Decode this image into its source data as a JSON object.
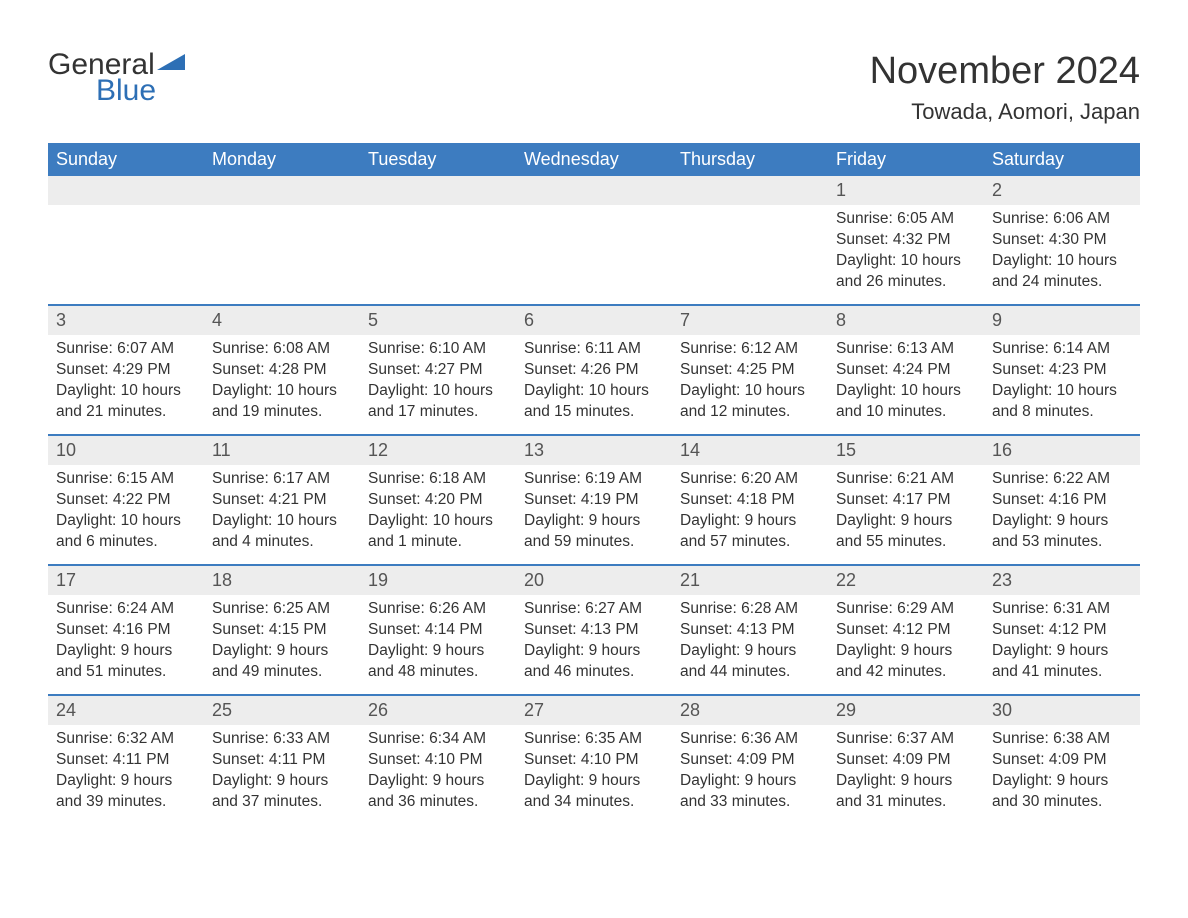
{
  "brand": {
    "word1": "General",
    "word2": "Blue",
    "accent": "#2d6fb5"
  },
  "title": "November 2024",
  "location": "Towada, Aomori, Japan",
  "colors": {
    "header_bg": "#3d7cc0",
    "header_text": "#ffffff",
    "daynum_bg": "#ededed",
    "row_border": "#3d7cc0",
    "text": "#333333",
    "background": "#ffffff"
  },
  "layout": {
    "columns": 7,
    "rows": 5
  },
  "weekdays": [
    "Sunday",
    "Monday",
    "Tuesday",
    "Wednesday",
    "Thursday",
    "Friday",
    "Saturday"
  ],
  "weeks": [
    [
      {
        "empty": true
      },
      {
        "empty": true
      },
      {
        "empty": true
      },
      {
        "empty": true
      },
      {
        "empty": true
      },
      {
        "day": "1",
        "sunrise": "Sunrise: 6:05 AM",
        "sunset": "Sunset: 4:32 PM",
        "daylight1": "Daylight: 10 hours",
        "daylight2": "and 26 minutes."
      },
      {
        "day": "2",
        "sunrise": "Sunrise: 6:06 AM",
        "sunset": "Sunset: 4:30 PM",
        "daylight1": "Daylight: 10 hours",
        "daylight2": "and 24 minutes."
      }
    ],
    [
      {
        "day": "3",
        "sunrise": "Sunrise: 6:07 AM",
        "sunset": "Sunset: 4:29 PM",
        "daylight1": "Daylight: 10 hours",
        "daylight2": "and 21 minutes."
      },
      {
        "day": "4",
        "sunrise": "Sunrise: 6:08 AM",
        "sunset": "Sunset: 4:28 PM",
        "daylight1": "Daylight: 10 hours",
        "daylight2": "and 19 minutes."
      },
      {
        "day": "5",
        "sunrise": "Sunrise: 6:10 AM",
        "sunset": "Sunset: 4:27 PM",
        "daylight1": "Daylight: 10 hours",
        "daylight2": "and 17 minutes."
      },
      {
        "day": "6",
        "sunrise": "Sunrise: 6:11 AM",
        "sunset": "Sunset: 4:26 PM",
        "daylight1": "Daylight: 10 hours",
        "daylight2": "and 15 minutes."
      },
      {
        "day": "7",
        "sunrise": "Sunrise: 6:12 AM",
        "sunset": "Sunset: 4:25 PM",
        "daylight1": "Daylight: 10 hours",
        "daylight2": "and 12 minutes."
      },
      {
        "day": "8",
        "sunrise": "Sunrise: 6:13 AM",
        "sunset": "Sunset: 4:24 PM",
        "daylight1": "Daylight: 10 hours",
        "daylight2": "and 10 minutes."
      },
      {
        "day": "9",
        "sunrise": "Sunrise: 6:14 AM",
        "sunset": "Sunset: 4:23 PM",
        "daylight1": "Daylight: 10 hours",
        "daylight2": "and 8 minutes."
      }
    ],
    [
      {
        "day": "10",
        "sunrise": "Sunrise: 6:15 AM",
        "sunset": "Sunset: 4:22 PM",
        "daylight1": "Daylight: 10 hours",
        "daylight2": "and 6 minutes."
      },
      {
        "day": "11",
        "sunrise": "Sunrise: 6:17 AM",
        "sunset": "Sunset: 4:21 PM",
        "daylight1": "Daylight: 10 hours",
        "daylight2": "and 4 minutes."
      },
      {
        "day": "12",
        "sunrise": "Sunrise: 6:18 AM",
        "sunset": "Sunset: 4:20 PM",
        "daylight1": "Daylight: 10 hours",
        "daylight2": "and 1 minute."
      },
      {
        "day": "13",
        "sunrise": "Sunrise: 6:19 AM",
        "sunset": "Sunset: 4:19 PM",
        "daylight1": "Daylight: 9 hours",
        "daylight2": "and 59 minutes."
      },
      {
        "day": "14",
        "sunrise": "Sunrise: 6:20 AM",
        "sunset": "Sunset: 4:18 PM",
        "daylight1": "Daylight: 9 hours",
        "daylight2": "and 57 minutes."
      },
      {
        "day": "15",
        "sunrise": "Sunrise: 6:21 AM",
        "sunset": "Sunset: 4:17 PM",
        "daylight1": "Daylight: 9 hours",
        "daylight2": "and 55 minutes."
      },
      {
        "day": "16",
        "sunrise": "Sunrise: 6:22 AM",
        "sunset": "Sunset: 4:16 PM",
        "daylight1": "Daylight: 9 hours",
        "daylight2": "and 53 minutes."
      }
    ],
    [
      {
        "day": "17",
        "sunrise": "Sunrise: 6:24 AM",
        "sunset": "Sunset: 4:16 PM",
        "daylight1": "Daylight: 9 hours",
        "daylight2": "and 51 minutes."
      },
      {
        "day": "18",
        "sunrise": "Sunrise: 6:25 AM",
        "sunset": "Sunset: 4:15 PM",
        "daylight1": "Daylight: 9 hours",
        "daylight2": "and 49 minutes."
      },
      {
        "day": "19",
        "sunrise": "Sunrise: 6:26 AM",
        "sunset": "Sunset: 4:14 PM",
        "daylight1": "Daylight: 9 hours",
        "daylight2": "and 48 minutes."
      },
      {
        "day": "20",
        "sunrise": "Sunrise: 6:27 AM",
        "sunset": "Sunset: 4:13 PM",
        "daylight1": "Daylight: 9 hours",
        "daylight2": "and 46 minutes."
      },
      {
        "day": "21",
        "sunrise": "Sunrise: 6:28 AM",
        "sunset": "Sunset: 4:13 PM",
        "daylight1": "Daylight: 9 hours",
        "daylight2": "and 44 minutes."
      },
      {
        "day": "22",
        "sunrise": "Sunrise: 6:29 AM",
        "sunset": "Sunset: 4:12 PM",
        "daylight1": "Daylight: 9 hours",
        "daylight2": "and 42 minutes."
      },
      {
        "day": "23",
        "sunrise": "Sunrise: 6:31 AM",
        "sunset": "Sunset: 4:12 PM",
        "daylight1": "Daylight: 9 hours",
        "daylight2": "and 41 minutes."
      }
    ],
    [
      {
        "day": "24",
        "sunrise": "Sunrise: 6:32 AM",
        "sunset": "Sunset: 4:11 PM",
        "daylight1": "Daylight: 9 hours",
        "daylight2": "and 39 minutes."
      },
      {
        "day": "25",
        "sunrise": "Sunrise: 6:33 AM",
        "sunset": "Sunset: 4:11 PM",
        "daylight1": "Daylight: 9 hours",
        "daylight2": "and 37 minutes."
      },
      {
        "day": "26",
        "sunrise": "Sunrise: 6:34 AM",
        "sunset": "Sunset: 4:10 PM",
        "daylight1": "Daylight: 9 hours",
        "daylight2": "and 36 minutes."
      },
      {
        "day": "27",
        "sunrise": "Sunrise: 6:35 AM",
        "sunset": "Sunset: 4:10 PM",
        "daylight1": "Daylight: 9 hours",
        "daylight2": "and 34 minutes."
      },
      {
        "day": "28",
        "sunrise": "Sunrise: 6:36 AM",
        "sunset": "Sunset: 4:09 PM",
        "daylight1": "Daylight: 9 hours",
        "daylight2": "and 33 minutes."
      },
      {
        "day": "29",
        "sunrise": "Sunrise: 6:37 AM",
        "sunset": "Sunset: 4:09 PM",
        "daylight1": "Daylight: 9 hours",
        "daylight2": "and 31 minutes."
      },
      {
        "day": "30",
        "sunrise": "Sunrise: 6:38 AM",
        "sunset": "Sunset: 4:09 PM",
        "daylight1": "Daylight: 9 hours",
        "daylight2": "and 30 minutes."
      }
    ]
  ]
}
